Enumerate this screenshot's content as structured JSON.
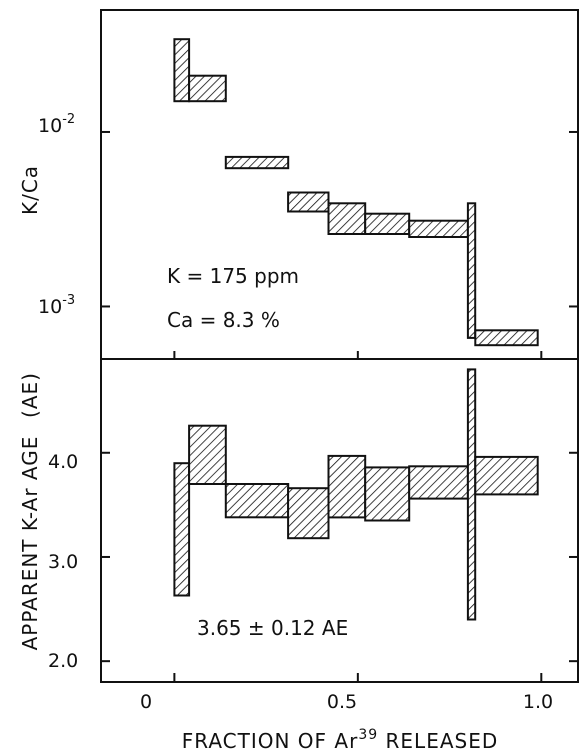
{
  "chart_data": [
    {
      "type": "bar",
      "subtype": "step-spectrum",
      "ylabel": "K/Ca",
      "yscale": "log",
      "ylim": [
        0.0005,
        0.05
      ],
      "yticks": [
        {
          "value": 0.01,
          "base": "10",
          "exp": "-2"
        },
        {
          "value": 0.001,
          "base": "10",
          "exp": "-3"
        }
      ],
      "annotations": [
        "K = 175 ppm",
        "Ca = 8.3 %"
      ],
      "steps": [
        {
          "x0": 0.0,
          "x1": 0.04,
          "y_low": 0.015,
          "y_high": 0.034
        },
        {
          "x0": 0.04,
          "x1": 0.14,
          "y_low": 0.015,
          "y_high": 0.021
        },
        {
          "x0": 0.14,
          "x1": 0.31,
          "y_low": 0.0062,
          "y_high": 0.0072
        },
        {
          "x0": 0.31,
          "x1": 0.42,
          "y_low": 0.0035,
          "y_high": 0.0045
        },
        {
          "x0": 0.42,
          "x1": 0.52,
          "y_low": 0.0026,
          "y_high": 0.0039
        },
        {
          "x0": 0.52,
          "x1": 0.64,
          "y_low": 0.0026,
          "y_high": 0.0034
        },
        {
          "x0": 0.64,
          "x1": 0.8,
          "y_low": 0.0025,
          "y_high": 0.0031
        },
        {
          "x0": 0.8,
          "x1": 0.82,
          "y_low": 0.00066,
          "y_high": 0.0039
        },
        {
          "x0": 0.82,
          "x1": 0.99,
          "y_low": 0.0006,
          "y_high": 0.00073
        }
      ]
    },
    {
      "type": "bar",
      "subtype": "step-spectrum",
      "ylabel": "APPARENT K-Ar AGE",
      "yunit": "(AE)",
      "ylim": [
        1.8,
        4.9
      ],
      "yticks": [
        "2.0",
        "3.0",
        "4.0"
      ],
      "annotations": [
        "3.65 ± 0.12 AE"
      ],
      "steps": [
        {
          "x0": 0.0,
          "x1": 0.04,
          "y_low": 2.63,
          "y_high": 3.9
        },
        {
          "x0": 0.04,
          "x1": 0.14,
          "y_low": 3.7,
          "y_high": 4.26
        },
        {
          "x0": 0.14,
          "x1": 0.31,
          "y_low": 3.38,
          "y_high": 3.7
        },
        {
          "x0": 0.31,
          "x1": 0.42,
          "y_low": 3.18,
          "y_high": 3.66
        },
        {
          "x0": 0.42,
          "x1": 0.52,
          "y_low": 3.38,
          "y_high": 3.97
        },
        {
          "x0": 0.52,
          "x1": 0.64,
          "y_low": 3.35,
          "y_high": 3.86
        },
        {
          "x0": 0.64,
          "x1": 0.8,
          "y_low": 3.56,
          "y_high": 3.87
        },
        {
          "x0": 0.8,
          "x1": 0.82,
          "y_low": 2.4,
          "y_high": 4.8
        },
        {
          "x0": 0.82,
          "x1": 0.99,
          "y_low": 3.6,
          "y_high": 3.96
        }
      ]
    }
  ],
  "x_axis": {
    "xlim": [
      -0.2,
      1.1
    ],
    "ticks": [
      0,
      0.5,
      1.0
    ],
    "tick_labels": [
      "0",
      "0.5",
      "1.0"
    ],
    "label_main": "FRACTION  OF  Ar",
    "label_sup": "39",
    "label_end": " RELEASED"
  },
  "fill_color": "#111111",
  "line_color": "#111111"
}
